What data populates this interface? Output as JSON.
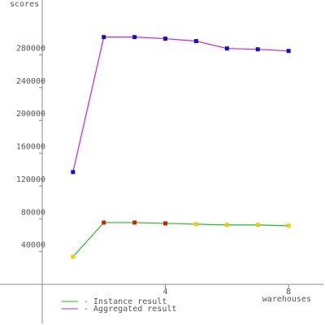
{
  "chart_data": {
    "type": "line",
    "y_label": "scores",
    "x_label": "warehouses",
    "x": [
      1,
      2,
      3,
      4,
      5,
      6,
      7,
      8
    ],
    "series": [
      {
        "name": "- Instance result",
        "color": "#22bb22",
        "marker_colors": [
          "#eecc00",
          "#cc2200",
          "#cc2200",
          "#cc2200",
          "#eecc00",
          "#eecc00",
          "#eecc00",
          "#eecc00"
        ],
        "values": [
          33700,
          75400,
          75400,
          74400,
          73400,
          72500,
          72500,
          71500
        ]
      },
      {
        "name": "- Aggregated result",
        "color": "#cc22cc",
        "marker_colors": [
          "#1111cc",
          "#1111cc",
          "#1111cc",
          "#1111cc",
          "#1111cc",
          "#1111cc",
          "#1111cc",
          "#1111cc"
        ],
        "values": [
          137000,
          301700,
          301700,
          299800,
          296800,
          287800,
          286800,
          284800
        ]
      }
    ],
    "xlim": [
      -1.37,
      9.13
    ],
    "xticks": [
      4,
      8
    ],
    "ylim": [
      -47600,
      342000
    ],
    "yticks": [
      40000,
      80000,
      120000,
      160000,
      200000,
      240000,
      280000
    ]
  }
}
